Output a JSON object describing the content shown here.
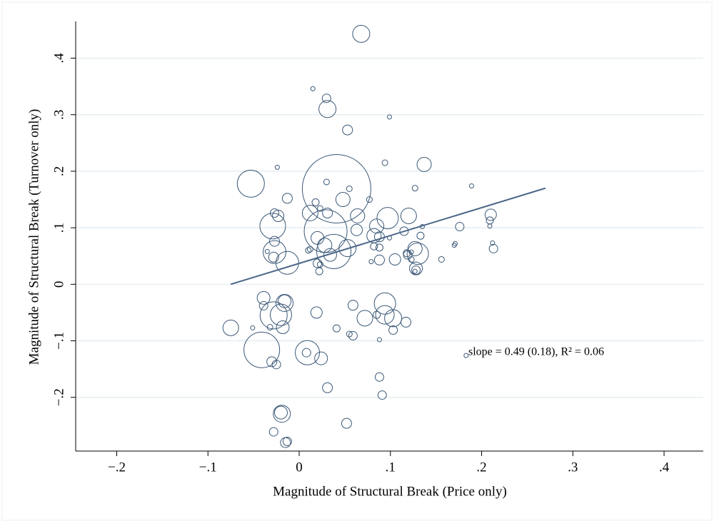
{
  "chart_data": {
    "type": "bubble",
    "xlabel": "Magnitude of Structural Break (Price only)",
    "ylabel": "Magnitude of Structural Break (Turnover only)",
    "annotation": "slope = 0.49 (0.18), R² = 0.06",
    "xlim": [
      -0.245,
      0.443
    ],
    "ylim": [
      -0.295,
      0.465
    ],
    "xticks": [
      {
        "value": -0.2,
        "label": "−.2"
      },
      {
        "value": -0.1,
        "label": "−.1"
      },
      0,
      {
        "value": 0.1,
        "label": ".1"
      },
      {
        "value": 0.2,
        "label": ".2"
      },
      {
        "value": 0.3,
        "label": ".3"
      },
      {
        "value": 0.4,
        "label": ".4"
      }
    ],
    "yticks": [
      {
        "value": -0.2,
        "label": "−.2"
      },
      {
        "value": -0.1,
        "label": "−.1"
      },
      0,
      {
        "value": 0.1,
        "label": ".1"
      },
      {
        "value": 0.2,
        "label": ".2"
      },
      {
        "value": 0.3,
        "label": ".3"
      },
      {
        "value": 0.4,
        "label": ".4"
      }
    ],
    "grid": true,
    "color": "#3b5877",
    "x": [
      0.068,
      0.015,
      0.03,
      0.031,
      0.099,
      0.053,
      0.094,
      0.137,
      -0.024,
      -0.053,
      0.03,
      0.041,
      0.055,
      0.189,
      -0.013,
      0.018,
      0.048,
      0.127,
      0.077,
      0.023,
      0.012,
      0.031,
      0.064,
      0.097,
      0.12,
      -0.027,
      -0.023,
      -0.029,
      0.063,
      0.209,
      0.21,
      0.209,
      -0.027,
      0.029,
      0.085,
      0.088,
      0.082,
      0.115,
      0.135,
      0.176,
      0.133,
      0.099,
      0.02,
      0.028,
      0.01,
      0.082,
      0.212,
      0.17,
      0.171,
      0.213,
      -0.027,
      -0.028,
      -0.035,
      -0.013,
      0.038,
      0.053,
      0.034,
      0.02,
      0.088,
      0.105,
      0.119,
      0.13,
      0.127,
      0.123,
      0.118,
      0.123,
      0.079,
      0.088,
      0.156,
      0.128,
      0.128,
      0.127,
      0.023,
      0.022,
      0.012,
      -0.039,
      -0.039,
      -0.016,
      -0.016,
      -0.028,
      -0.02,
      -0.018,
      -0.051,
      -0.032,
      -0.075,
      0.059,
      0.094,
      0.094,
      0.085,
      0.103,
      0.072,
      0.117,
      0.019,
      0.041,
      0.055,
      0.059,
      0.103,
      0.088,
      -0.041,
      0.009,
      0.008,
      0.024,
      -0.03,
      -0.025,
      0.031,
      0.088,
      0.091,
      -0.02,
      -0.019,
      -0.028,
      -0.015,
      -0.013,
      0.052,
      0.183
    ],
    "y": [
      0.443,
      0.346,
      0.329,
      0.31,
      0.296,
      0.273,
      0.215,
      0.212,
      0.207,
      0.178,
      0.181,
      0.169,
      0.169,
      0.174,
      0.152,
      0.145,
      0.15,
      0.17,
      0.15,
      0.134,
      0.126,
      0.126,
      0.121,
      0.117,
      0.121,
      0.126,
      0.121,
      0.103,
      0.096,
      0.113,
      0.123,
      0.103,
      0.076,
      0.094,
      0.103,
      0.084,
      0.086,
      0.094,
      0.102,
      0.102,
      0.086,
      0.082,
      0.082,
      0.069,
      0.06,
      0.067,
      0.073,
      0.069,
      0.072,
      0.063,
      0.057,
      0.048,
      0.058,
      0.038,
      0.058,
      0.064,
      0.052,
      0.037,
      0.065,
      0.044,
      0.052,
      0.054,
      0.063,
      0.044,
      0.055,
      0.057,
      0.04,
      0.043,
      0.044,
      0.025,
      0.028,
      0.023,
      0.035,
      0.023,
      0.062,
      -0.024,
      -0.038,
      -0.033,
      -0.03,
      -0.055,
      -0.054,
      -0.076,
      -0.077,
      -0.076,
      -0.077,
      -0.037,
      -0.034,
      -0.054,
      -0.054,
      -0.06,
      -0.06,
      -0.067,
      -0.05,
      -0.078,
      -0.088,
      -0.091,
      -0.081,
      -0.098,
      -0.116,
      -0.121,
      -0.121,
      -0.131,
      -0.137,
      -0.142,
      -0.183,
      -0.164,
      -0.196,
      -0.227,
      -0.229,
      -0.261,
      -0.28,
      -0.278,
      -0.246,
      -0.126
    ],
    "sizes": [
      144,
      9,
      36,
      144,
      9,
      49,
      16,
      100,
      9,
      361,
      16,
      2304,
      16,
      9,
      49,
      25,
      100,
      16,
      16,
      16,
      121,
      49,
      100,
      225,
      121,
      36,
      64,
      324,
      64,
      25,
      64,
      9,
      49,
      900,
      100,
      49,
      100,
      36,
      9,
      36,
      25,
      9,
      81,
      100,
      16,
      25,
      9,
      9,
      9,
      36,
      256,
      49,
      9,
      256,
      576,
      144,
      81,
      36,
      25,
      64,
      36,
      225,
      100,
      16,
      25,
      9,
      9,
      49,
      16,
      36,
      81,
      9,
      16,
      25,
      16,
      81,
      36,
      144,
      81,
      361,
      225,
      81,
      9,
      16,
      121,
      49,
      225,
      169,
      25,
      144,
      121,
      49,
      64,
      25,
      16,
      36,
      36,
      9,
      625,
      289,
      36,
      81,
      49,
      36,
      49,
      36,
      36,
      81,
      144,
      36,
      49,
      36,
      49,
      9
    ],
    "fit_line": {
      "x": [
        -0.075,
        0.27
      ],
      "y": [
        0.0,
        0.17
      ],
      "color": "#4a6586"
    }
  }
}
